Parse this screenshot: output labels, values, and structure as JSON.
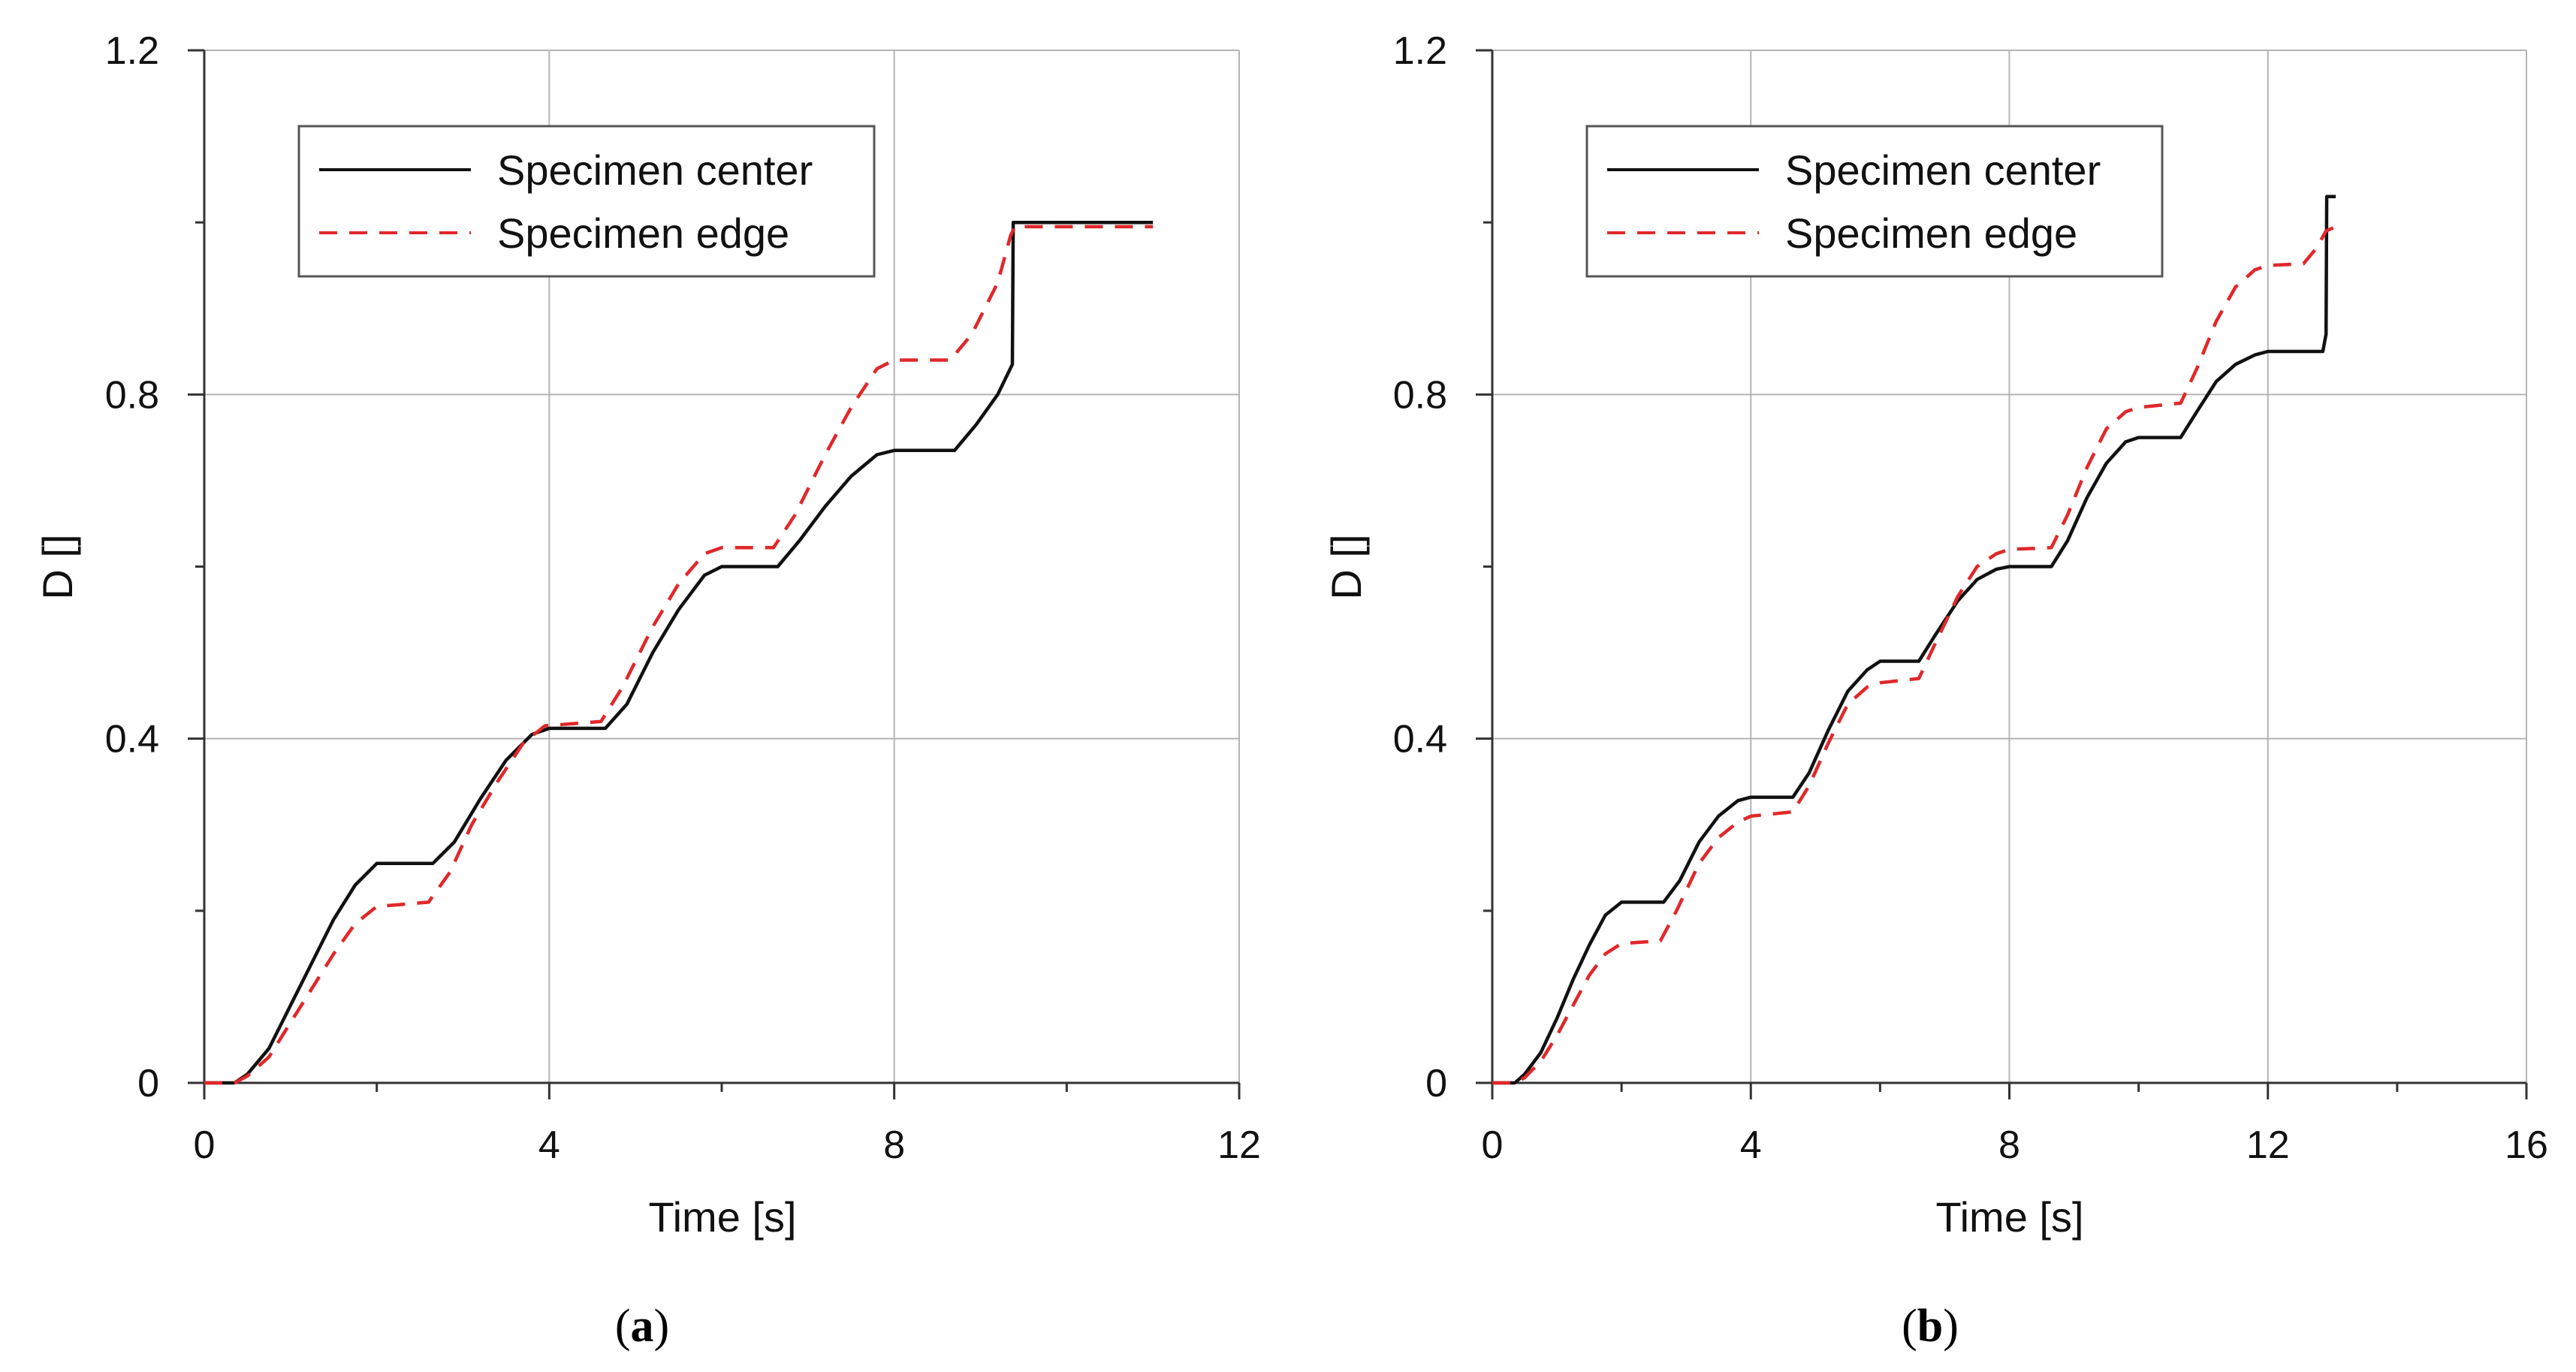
{
  "chart_data": [
    {
      "type": "line",
      "caption_letter": "a",
      "xlabel": "Time [s]",
      "ylabel": "D []",
      "xlim": [
        0,
        12
      ],
      "ylim": [
        0,
        1.2
      ],
      "xticks": [
        0,
        4,
        8,
        12
      ],
      "yticks": [
        0,
        0.4,
        0.8,
        1.2
      ],
      "xtick_labels": [
        "0",
        "4",
        "8",
        "12"
      ],
      "ytick_labels": [
        "0",
        "0.4",
        "0.8",
        "1.2"
      ],
      "minor_xticks": [
        2,
        6,
        10
      ],
      "minor_yticks": [
        0.2,
        0.6,
        1.0
      ],
      "grid": true,
      "legend_position": "top-left",
      "series": [
        {
          "name": "Specimen center",
          "color": "#111111",
          "style": "solid",
          "points": [
            [
              0,
              0
            ],
            [
              0.35,
              0
            ],
            [
              0.5,
              0.01
            ],
            [
              0.75,
              0.04
            ],
            [
              1.0,
              0.09
            ],
            [
              1.25,
              0.14
            ],
            [
              1.5,
              0.19
            ],
            [
              1.75,
              0.23
            ],
            [
              2.0,
              0.255
            ],
            [
              2.65,
              0.255
            ],
            [
              2.9,
              0.28
            ],
            [
              3.2,
              0.33
            ],
            [
              3.5,
              0.375
            ],
            [
              3.8,
              0.405
            ],
            [
              4.0,
              0.412
            ],
            [
              4.65,
              0.412
            ],
            [
              4.9,
              0.44
            ],
            [
              5.2,
              0.5
            ],
            [
              5.5,
              0.55
            ],
            [
              5.8,
              0.59
            ],
            [
              6.0,
              0.6
            ],
            [
              6.65,
              0.6
            ],
            [
              6.9,
              0.63
            ],
            [
              7.2,
              0.67
            ],
            [
              7.5,
              0.705
            ],
            [
              7.8,
              0.73
            ],
            [
              8.0,
              0.735
            ],
            [
              8.7,
              0.735
            ],
            [
              8.95,
              0.765
            ],
            [
              9.2,
              0.8
            ],
            [
              9.37,
              0.835
            ],
            [
              9.38,
              1.0
            ],
            [
              11.0,
              1.0
            ]
          ]
        },
        {
          "name": "Specimen edge",
          "color": "#e0282a",
          "style": "dashed",
          "points": [
            [
              0,
              0
            ],
            [
              0.35,
              0
            ],
            [
              0.5,
              0.008
            ],
            [
              0.75,
              0.03
            ],
            [
              1.0,
              0.07
            ],
            [
              1.25,
              0.11
            ],
            [
              1.5,
              0.15
            ],
            [
              1.75,
              0.185
            ],
            [
              2.0,
              0.205
            ],
            [
              2.6,
              0.21
            ],
            [
              2.85,
              0.245
            ],
            [
              3.1,
              0.3
            ],
            [
              3.4,
              0.35
            ],
            [
              3.7,
              0.395
            ],
            [
              3.95,
              0.415
            ],
            [
              4.6,
              0.42
            ],
            [
              4.85,
              0.46
            ],
            [
              5.2,
              0.53
            ],
            [
              5.5,
              0.58
            ],
            [
              5.8,
              0.615
            ],
            [
              6.0,
              0.622
            ],
            [
              6.6,
              0.622
            ],
            [
              6.85,
              0.66
            ],
            [
              7.2,
              0.73
            ],
            [
              7.5,
              0.785
            ],
            [
              7.8,
              0.83
            ],
            [
              8.0,
              0.84
            ],
            [
              8.65,
              0.84
            ],
            [
              8.9,
              0.87
            ],
            [
              9.2,
              0.93
            ],
            [
              9.35,
              0.985
            ],
            [
              9.4,
              0.995
            ],
            [
              11.0,
              0.995
            ]
          ]
        }
      ]
    },
    {
      "type": "line",
      "caption_letter": "b",
      "xlabel": "Time [s]",
      "ylabel": "D []",
      "xlim": [
        0,
        16
      ],
      "ylim": [
        0,
        1.2
      ],
      "xticks": [
        0,
        4,
        8,
        12,
        16
      ],
      "yticks": [
        0,
        0.4,
        0.8,
        1.2
      ],
      "xtick_labels": [
        "0",
        "4",
        "8",
        "12",
        "16"
      ],
      "ytick_labels": [
        "0",
        "0.4",
        "0.8",
        "1.2"
      ],
      "minor_xticks": [
        2,
        6,
        10,
        14
      ],
      "minor_yticks": [
        0.2,
        0.6,
        1.0
      ],
      "grid": true,
      "legend_position": "top-left",
      "series": [
        {
          "name": "Specimen center",
          "color": "#111111",
          "style": "solid",
          "points": [
            [
              0,
              0
            ],
            [
              0.35,
              0
            ],
            [
              0.5,
              0.01
            ],
            [
              0.75,
              0.035
            ],
            [
              1.0,
              0.075
            ],
            [
              1.25,
              0.12
            ],
            [
              1.5,
              0.16
            ],
            [
              1.75,
              0.195
            ],
            [
              2.0,
              0.21
            ],
            [
              2.65,
              0.21
            ],
            [
              2.9,
              0.235
            ],
            [
              3.2,
              0.28
            ],
            [
              3.5,
              0.31
            ],
            [
              3.8,
              0.328
            ],
            [
              4.0,
              0.332
            ],
            [
              4.65,
              0.332
            ],
            [
              4.9,
              0.36
            ],
            [
              5.2,
              0.41
            ],
            [
              5.5,
              0.455
            ],
            [
              5.8,
              0.48
            ],
            [
              6.0,
              0.49
            ],
            [
              6.6,
              0.49
            ],
            [
              6.85,
              0.52
            ],
            [
              7.2,
              0.56
            ],
            [
              7.5,
              0.585
            ],
            [
              7.8,
              0.597
            ],
            [
              8.0,
              0.6
            ],
            [
              8.65,
              0.6
            ],
            [
              8.9,
              0.63
            ],
            [
              9.2,
              0.68
            ],
            [
              9.5,
              0.72
            ],
            [
              9.8,
              0.745
            ],
            [
              10.0,
              0.75
            ],
            [
              10.65,
              0.75
            ],
            [
              10.9,
              0.78
            ],
            [
              11.2,
              0.815
            ],
            [
              11.5,
              0.835
            ],
            [
              11.8,
              0.846
            ],
            [
              12.0,
              0.85
            ],
            [
              12.85,
              0.85
            ],
            [
              12.9,
              0.87
            ],
            [
              12.91,
              1.03
            ],
            [
              13.05,
              1.03
            ]
          ]
        },
        {
          "name": "Specimen edge",
          "color": "#e0282a",
          "style": "dashed",
          "points": [
            [
              0,
              0
            ],
            [
              0.35,
              0
            ],
            [
              0.5,
              0.006
            ],
            [
              0.75,
              0.025
            ],
            [
              1.0,
              0.055
            ],
            [
              1.25,
              0.09
            ],
            [
              1.5,
              0.125
            ],
            [
              1.75,
              0.15
            ],
            [
              2.0,
              0.162
            ],
            [
              2.6,
              0.165
            ],
            [
              2.85,
              0.2
            ],
            [
              3.2,
              0.255
            ],
            [
              3.5,
              0.285
            ],
            [
              3.8,
              0.303
            ],
            [
              4.0,
              0.31
            ],
            [
              4.65,
              0.315
            ],
            [
              4.9,
              0.345
            ],
            [
              5.2,
              0.395
            ],
            [
              5.5,
              0.44
            ],
            [
              5.8,
              0.46
            ],
            [
              6.0,
              0.465
            ],
            [
              6.6,
              0.47
            ],
            [
              6.85,
              0.51
            ],
            [
              7.2,
              0.565
            ],
            [
              7.5,
              0.6
            ],
            [
              7.8,
              0.615
            ],
            [
              8.0,
              0.62
            ],
            [
              8.65,
              0.622
            ],
            [
              8.9,
              0.66
            ],
            [
              9.2,
              0.715
            ],
            [
              9.5,
              0.76
            ],
            [
              9.8,
              0.78
            ],
            [
              10.0,
              0.785
            ],
            [
              10.65,
              0.79
            ],
            [
              10.9,
              0.83
            ],
            [
              11.2,
              0.885
            ],
            [
              11.5,
              0.925
            ],
            [
              11.8,
              0.945
            ],
            [
              12.0,
              0.95
            ],
            [
              12.55,
              0.952
            ],
            [
              12.75,
              0.97
            ],
            [
              12.9,
              0.99
            ],
            [
              13.05,
              0.995
            ]
          ]
        }
      ]
    }
  ]
}
